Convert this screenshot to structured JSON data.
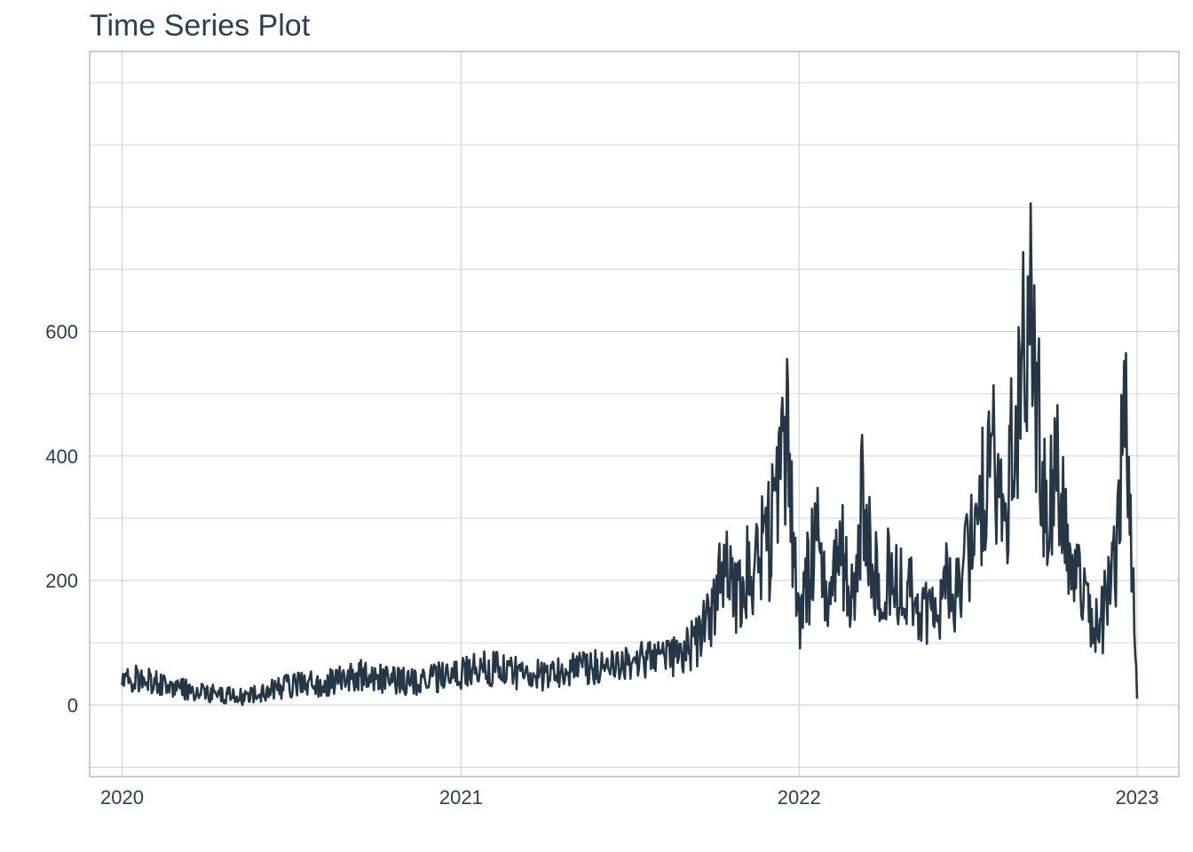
{
  "chart_data": {
    "type": "line",
    "title": "Time Series Plot",
    "xlabel": "",
    "ylabel": "",
    "x_ticks": [
      "2020",
      "2021",
      "2022",
      "2023"
    ],
    "y_ticks": [
      0,
      200,
      400,
      600
    ],
    "xlim": [
      "2019-11-27",
      "2023-02-15"
    ],
    "ylim": [
      -115,
      1050
    ],
    "y_scale": "linear",
    "grid": true,
    "legend": "none",
    "line_color": "#253746",
    "series": [
      {
        "x": [
          "2020-01-01",
          "2020-01-15",
          "2020-02-01",
          "2020-02-15",
          "2020-03-01",
          "2020-03-15",
          "2020-04-01",
          "2020-04-15",
          "2020-05-01",
          "2020-05-15",
          "2020-06-01",
          "2020-06-15",
          "2020-07-01",
          "2020-07-15",
          "2020-08-01",
          "2020-08-15",
          "2020-09-01",
          "2020-09-15",
          "2020-10-01",
          "2020-10-15",
          "2020-11-01",
          "2020-11-15",
          "2020-12-01",
          "2020-12-15",
          "2021-01-01",
          "2021-01-15",
          "2021-02-01",
          "2021-02-15",
          "2021-03-01",
          "2021-03-15",
          "2021-04-01",
          "2021-04-15",
          "2021-05-01",
          "2021-05-15",
          "2021-06-01",
          "2021-06-15",
          "2021-07-01",
          "2021-07-15",
          "2021-08-01",
          "2021-08-15",
          "2021-09-01",
          "2021-09-15",
          "2021-10-01",
          "2021-10-10",
          "2021-10-20",
          "2021-11-01",
          "2021-11-15",
          "2021-12-01",
          "2021-12-10",
          "2021-12-20",
          "2021-12-28",
          "2022-01-01",
          "2022-01-10",
          "2022-01-20",
          "2022-02-01",
          "2022-02-15",
          "2022-02-25",
          "2022-03-05",
          "2022-03-10",
          "2022-03-20",
          "2022-04-01",
          "2022-04-15",
          "2022-05-01",
          "2022-05-15",
          "2022-06-01",
          "2022-06-10",
          "2022-06-20",
          "2022-07-01",
          "2022-07-10",
          "2022-07-20",
          "2022-08-01",
          "2022-08-10",
          "2022-08-20",
          "2022-08-28",
          "2022-09-05",
          "2022-09-15",
          "2022-09-25",
          "2022-10-05",
          "2022-10-15",
          "2022-10-25",
          "2022-11-05",
          "2022-11-15",
          "2022-11-25",
          "2022-12-01",
          "2022-12-10",
          "2022-12-15",
          "2022-12-20",
          "2022-12-25",
          "2022-12-29",
          "2023-01-01"
        ],
        "values": [
          38,
          42,
          40,
          30,
          28,
          22,
          18,
          20,
          14,
          12,
          22,
          28,
          30,
          35,
          32,
          38,
          42,
          48,
          44,
          40,
          38,
          36,
          42,
          48,
          52,
          56,
          60,
          55,
          52,
          50,
          48,
          52,
          55,
          58,
          60,
          62,
          68,
          70,
          75,
          78,
          85,
          110,
          150,
          230,
          180,
          200,
          230,
          270,
          340,
          430,
          200,
          120,
          200,
          260,
          180,
          250,
          160,
          200,
          400,
          210,
          220,
          200,
          180,
          160,
          140,
          200,
          180,
          230,
          300,
          380,
          420,
          330,
          410,
          520,
          650,
          460,
          320,
          380,
          270,
          210,
          170,
          130,
          140,
          200,
          250,
          380,
          420,
          300,
          120,
          10
        ],
        "noise_amplitude": 0.35
      }
    ]
  }
}
